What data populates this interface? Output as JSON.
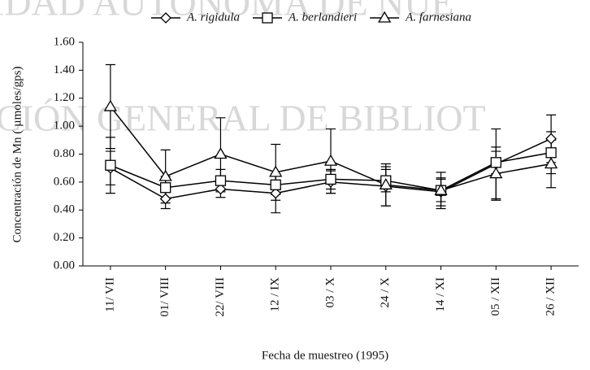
{
  "chart_data": {
    "type": "line",
    "watermarks": [
      "IDAD AUTÓNOMA DE NUE",
      "CIÓN GENERAL DE BIBLIOT"
    ],
    "xlabel": "Fecha de muestreo (1995)",
    "ylabel": "Concentración de Mn ( µmoles/gps)",
    "categories": [
      "11/ VII",
      "01/ VIII",
      "22/ VIII",
      "12 / IX",
      "03 / X",
      "24 / X",
      "14 / XI",
      "05 / XII",
      "26 / XII"
    ],
    "series": [
      {
        "name": "A. rigidula",
        "color": "#000000",
        "marker": "diamond",
        "values": [
          0.7,
          0.48,
          0.55,
          0.52,
          0.6,
          0.57,
          0.53,
          0.73,
          0.91
        ],
        "errors": [
          0.12,
          0.07,
          0.06,
          0.14,
          0.08,
          0.14,
          0.1,
          0.25,
          0.17
        ]
      },
      {
        "name": "A. berlandieri",
        "color": "#000000",
        "marker": "square",
        "values": [
          0.72,
          0.56,
          0.61,
          0.58,
          0.62,
          0.61,
          0.54,
          0.74,
          0.81
        ],
        "errors": [
          0.2,
          0.08,
          0.08,
          0.07,
          0.07,
          0.08,
          0.08,
          0.08,
          0.15
        ]
      },
      {
        "name": "A. farnesiana",
        "color": "#000000",
        "marker": "triangle",
        "values": [
          1.14,
          0.64,
          0.8,
          0.67,
          0.75,
          0.58,
          0.54,
          0.66,
          0.73
        ],
        "errors": [
          0.3,
          0.19,
          0.26,
          0.2,
          0.23,
          0.15,
          0.13,
          0.19,
          0.17
        ]
      }
    ],
    "ylim": [
      0,
      1.6
    ],
    "yticks": [
      {
        "value": 0,
        "label": "0.00"
      },
      {
        "value": 0.2,
        "label": "0.20"
      },
      {
        "value": 0.4,
        "label": "0.40"
      },
      {
        "value": 0.6,
        "label": "0.60"
      },
      {
        "value": 0.8,
        "label": "0.80"
      },
      {
        "value": 1.0,
        "label": "1.00"
      },
      {
        "value": 1.2,
        "label": "1.20"
      },
      {
        "value": 1.4,
        "label": "1.40"
      },
      {
        "value": 1.6,
        "label": "1.60"
      }
    ],
    "legend": "top"
  }
}
